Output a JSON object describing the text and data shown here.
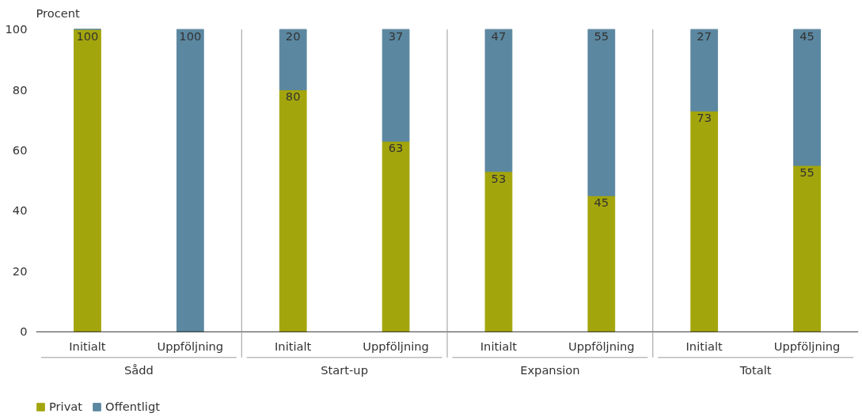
{
  "chart_data": {
    "type": "bar",
    "stacked": true,
    "ylabel": "Procent",
    "categories": [
      "Initialt",
      "Uppföljning",
      "Initialt",
      "Uppföljning",
      "Initialt",
      "Uppföljning",
      "Initialt",
      "Uppföljning"
    ],
    "annotations": [
      "Sådd",
      "Start-up",
      "Expansion",
      "Totalt"
    ],
    "series": [
      {
        "name": "Privat",
        "color": "#a3a50c",
        "values": [
          100,
          0,
          80,
          63,
          53,
          45,
          73,
          55
        ],
        "value_labels": [
          "100",
          null,
          "80",
          "63",
          "53",
          "45",
          "73",
          "55"
        ]
      },
      {
        "name": "Offentligt",
        "color": "#5b87a0",
        "values": [
          0,
          100,
          20,
          37,
          47,
          55,
          27,
          45
        ],
        "value_labels": [
          null,
          "100",
          "20",
          "37",
          "47",
          "55",
          "27",
          "45"
        ]
      }
    ],
    "ylim": [
      0,
      100
    ],
    "yticks": [
      0,
      20,
      40,
      60,
      80,
      100
    ],
    "grid": false,
    "legend": "bottom"
  }
}
